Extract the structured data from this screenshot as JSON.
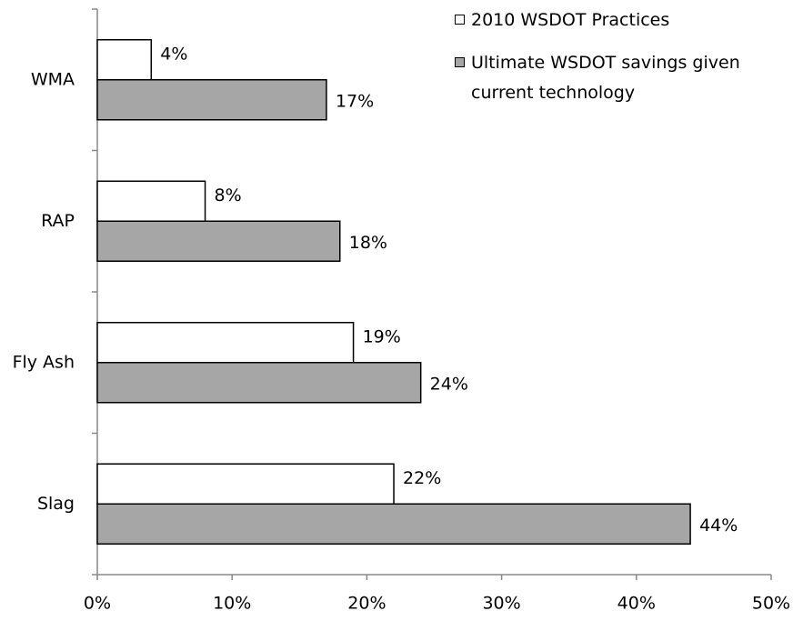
{
  "chart_data": {
    "type": "bar",
    "orientation": "horizontal",
    "categories": [
      "WMA",
      "RAP",
      "Fly Ash",
      "Slag"
    ],
    "series": [
      {
        "name": "2010 WSDOT Practices",
        "color": "#ffffff",
        "values": [
          4,
          8,
          19,
          22
        ],
        "value_labels": [
          "4%",
          "8%",
          "19%",
          "22%"
        ]
      },
      {
        "name": "Ultimate WSDOT savings given current technology",
        "color": "#a6a6a6",
        "values": [
          17,
          18,
          24,
          44
        ],
        "value_labels": [
          "17%",
          "18%",
          "24%",
          "44%"
        ]
      }
    ],
    "xlim": [
      0,
      50
    ],
    "xticks": [
      {
        "value": 0,
        "label": "0%"
      },
      {
        "value": 10,
        "label": "10%"
      },
      {
        "value": 20,
        "label": "20%"
      },
      {
        "value": 30,
        "label": "30%"
      },
      {
        "value": 40,
        "label": "40%"
      },
      {
        "value": 50,
        "label": "50%"
      }
    ],
    "legend": "top-right",
    "grid": false
  }
}
